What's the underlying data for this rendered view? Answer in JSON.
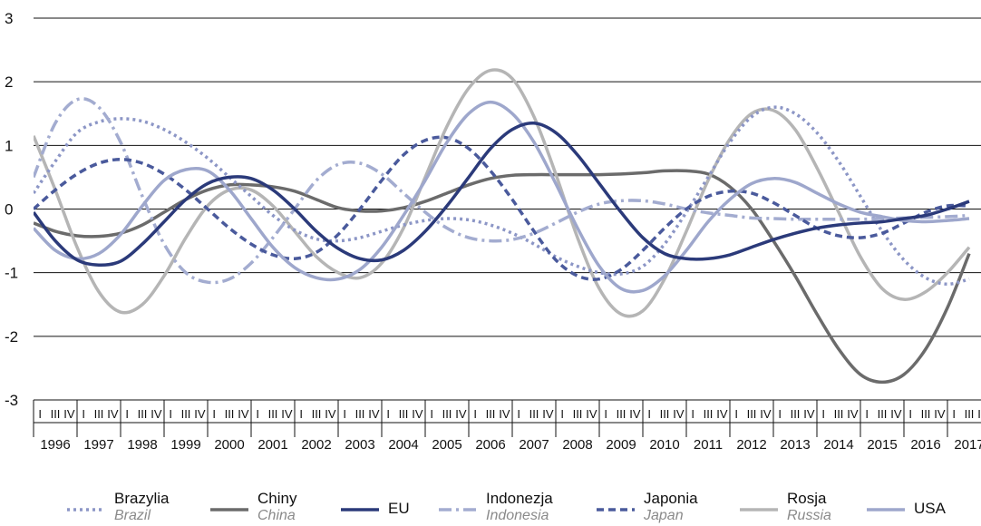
{
  "chart_data": {
    "type": "line",
    "title": "",
    "xlabel": "",
    "ylabel": "",
    "ylim": [
      -3,
      3
    ],
    "yticks": [
      3,
      2,
      1,
      0,
      -1,
      -2,
      -3
    ],
    "years": [
      "1996",
      "1997",
      "1998",
      "1999",
      "2000",
      "2001",
      "2002",
      "2003",
      "2004",
      "2005",
      "2006",
      "2007",
      "2008",
      "2009",
      "2010",
      "2011",
      "2012",
      "2013",
      "2014",
      "2015",
      "2016",
      "2017"
    ],
    "quarter_marks": [
      "I",
      "II",
      "III",
      "IV"
    ],
    "grid": true,
    "legend_position": "bottom",
    "series": [
      {
        "name": "Brazylia",
        "subtitle": "Brazil",
        "color": "#8c96c6",
        "style": "dotted",
        "x": [
          1996.0,
          1996.5,
          1997.0,
          1997.5,
          1998.0,
          1998.5,
          1999.0,
          1999.5,
          2000.0,
          2000.5,
          2001.0,
          2001.5,
          2002.0,
          2002.5,
          2003.0,
          2003.5,
          2004.0,
          2004.5,
          2005.0,
          2005.5,
          2006.0,
          2006.5,
          2007.0,
          2007.5,
          2008.0,
          2008.5,
          2009.0,
          2009.5,
          2010.0,
          2010.5,
          2011.0,
          2011.5,
          2012.0,
          2012.5,
          2013.0,
          2013.5,
          2014.0,
          2014.5,
          2015.0,
          2015.5,
          2016.0,
          2016.5,
          2017.0,
          2017.5
        ],
        "values": [
          0.25,
          0.75,
          1.2,
          1.37,
          1.42,
          1.38,
          1.25,
          1.05,
          0.8,
          0.5,
          0.2,
          -0.1,
          -0.33,
          -0.47,
          -0.5,
          -0.45,
          -0.35,
          -0.25,
          -0.18,
          -0.15,
          -0.17,
          -0.25,
          -0.38,
          -0.55,
          -0.75,
          -0.9,
          -1.0,
          -1.02,
          -0.9,
          -0.55,
          -0.05,
          0.5,
          1.05,
          1.45,
          1.6,
          1.5,
          1.2,
          0.75,
          0.2,
          -0.35,
          -0.8,
          -1.08,
          -1.18,
          -1.1
        ]
      },
      {
        "name": "Chiny",
        "subtitle": "China",
        "color": "#6b6b6b",
        "style": "solid",
        "x": [
          1996.0,
          1996.5,
          1997.0,
          1997.5,
          1998.0,
          1998.5,
          1999.0,
          1999.5,
          2000.0,
          2000.5,
          2001.0,
          2001.5,
          2002.0,
          2002.5,
          2003.0,
          2003.5,
          2004.0,
          2004.5,
          2005.0,
          2005.5,
          2006.0,
          2006.5,
          2007.0,
          2007.5,
          2008.0,
          2008.5,
          2009.0,
          2009.5,
          2010.0,
          2010.5,
          2011.0,
          2011.5,
          2012.0,
          2012.5,
          2013.0,
          2013.5,
          2014.0,
          2014.5,
          2015.0,
          2015.5,
          2016.0,
          2016.5,
          2017.0,
          2017.5
        ],
        "values": [
          -0.22,
          -0.35,
          -0.42,
          -0.43,
          -0.38,
          -0.25,
          -0.05,
          0.15,
          0.3,
          0.38,
          0.38,
          0.35,
          0.28,
          0.15,
          0.02,
          -0.03,
          -0.03,
          0.02,
          0.12,
          0.25,
          0.38,
          0.48,
          0.53,
          0.54,
          0.54,
          0.54,
          0.54,
          0.55,
          0.57,
          0.6,
          0.6,
          0.55,
          0.35,
          0.0,
          -0.5,
          -1.05,
          -1.65,
          -2.2,
          -2.6,
          -2.72,
          -2.6,
          -2.2,
          -1.55,
          -0.7
        ]
      },
      {
        "name": "EU",
        "subtitle": "",
        "color": "#2b3a7a",
        "style": "solid",
        "x": [
          1996.0,
          1996.5,
          1997.0,
          1997.5,
          1998.0,
          1998.5,
          1999.0,
          1999.5,
          2000.0,
          2000.5,
          2001.0,
          2001.5,
          2002.0,
          2002.5,
          2003.0,
          2003.5,
          2004.0,
          2004.5,
          2005.0,
          2005.5,
          2006.0,
          2006.5,
          2007.0,
          2007.5,
          2008.0,
          2008.5,
          2009.0,
          2009.5,
          2010.0,
          2010.5,
          2011.0,
          2011.5,
          2012.0,
          2012.5,
          2013.0,
          2013.5,
          2014.0,
          2014.5,
          2015.0,
          2015.5,
          2016.0,
          2016.5,
          2017.0,
          2017.5
        ],
        "values": [
          -0.05,
          -0.5,
          -0.8,
          -0.88,
          -0.82,
          -0.55,
          -0.2,
          0.15,
          0.4,
          0.5,
          0.48,
          0.3,
          0.0,
          -0.35,
          -0.62,
          -0.78,
          -0.8,
          -0.65,
          -0.35,
          0.05,
          0.5,
          0.95,
          1.25,
          1.35,
          1.2,
          0.85,
          0.4,
          -0.05,
          -0.45,
          -0.7,
          -0.78,
          -0.78,
          -0.72,
          -0.6,
          -0.48,
          -0.38,
          -0.3,
          -0.25,
          -0.22,
          -0.2,
          -0.15,
          -0.1,
          0.0,
          0.12
        ]
      },
      {
        "name": "Indonezja",
        "subtitle": "Indonesia",
        "color": "#a3acd0",
        "style": "dashdot",
        "x": [
          1996.0,
          1996.5,
          1997.0,
          1997.5,
          1998.0,
          1998.5,
          1999.0,
          1999.5,
          2000.0,
          2000.5,
          2001.0,
          2001.5,
          2002.0,
          2002.5,
          2003.0,
          2003.5,
          2004.0,
          2004.5,
          2005.0,
          2005.5,
          2006.0,
          2006.5,
          2007.0,
          2007.5,
          2008.0,
          2008.5,
          2009.0,
          2009.5,
          2010.0,
          2010.5,
          2011.0,
          2011.5,
          2012.0,
          2012.5,
          2013.0,
          2013.5,
          2014.0,
          2014.5,
          2015.0,
          2015.5,
          2016.0,
          2016.5,
          2017.0,
          2017.5
        ],
        "values": [
          0.5,
          1.35,
          1.72,
          1.6,
          1.05,
          0.2,
          -0.55,
          -1.0,
          -1.15,
          -1.1,
          -0.85,
          -0.45,
          0.0,
          0.45,
          0.7,
          0.72,
          0.55,
          0.25,
          -0.05,
          -0.3,
          -0.45,
          -0.5,
          -0.48,
          -0.38,
          -0.22,
          -0.05,
          0.08,
          0.13,
          0.13,
          0.08,
          0.0,
          -0.06,
          -0.1,
          -0.14,
          -0.15,
          -0.16,
          -0.16,
          -0.16,
          -0.16,
          -0.15,
          -0.14,
          -0.13,
          -0.12,
          -0.1
        ]
      },
      {
        "name": "Japonia",
        "subtitle": "Japan",
        "color": "#4a5a9c",
        "style": "dashed",
        "x": [
          1996.0,
          1996.5,
          1997.0,
          1997.5,
          1998.0,
          1998.5,
          1999.0,
          1999.5,
          2000.0,
          2000.5,
          2001.0,
          2001.5,
          2002.0,
          2002.5,
          2003.0,
          2003.5,
          2004.0,
          2004.5,
          2005.0,
          2005.5,
          2006.0,
          2006.5,
          2007.0,
          2007.5,
          2008.0,
          2008.5,
          2009.0,
          2009.5,
          2010.0,
          2010.5,
          2011.0,
          2011.5,
          2012.0,
          2012.5,
          2013.0,
          2013.5,
          2014.0,
          2014.5,
          2015.0,
          2015.5,
          2016.0,
          2016.5,
          2017.0,
          2017.5
        ],
        "values": [
          0.0,
          0.3,
          0.55,
          0.72,
          0.78,
          0.72,
          0.55,
          0.3,
          0.0,
          -0.3,
          -0.55,
          -0.72,
          -0.78,
          -0.68,
          -0.4,
          0.0,
          0.45,
          0.85,
          1.08,
          1.12,
          0.95,
          0.6,
          0.15,
          -0.35,
          -0.8,
          -1.05,
          -1.1,
          -0.95,
          -0.65,
          -0.3,
          0.0,
          0.2,
          0.28,
          0.25,
          0.1,
          -0.1,
          -0.3,
          -0.42,
          -0.45,
          -0.38,
          -0.22,
          -0.05,
          0.05,
          0.05
        ]
      },
      {
        "name": "Rosja",
        "subtitle": "Russia",
        "color": "#b5b5b5",
        "style": "solid",
        "x": [
          1996.0,
          1996.5,
          1997.0,
          1997.5,
          1998.0,
          1998.5,
          1999.0,
          1999.5,
          2000.0,
          2000.5,
          2001.0,
          2001.5,
          2002.0,
          2002.5,
          2003.0,
          2003.5,
          2004.0,
          2004.5,
          2005.0,
          2005.5,
          2006.0,
          2006.5,
          2007.0,
          2007.5,
          2008.0,
          2008.5,
          2009.0,
          2009.5,
          2010.0,
          2010.5,
          2011.0,
          2011.5,
          2012.0,
          2012.5,
          2013.0,
          2013.5,
          2014.0,
          2014.5,
          2015.0,
          2015.5,
          2016.0,
          2016.5,
          2017.0,
          2017.5
        ],
        "values": [
          1.15,
          0.3,
          -0.6,
          -1.3,
          -1.62,
          -1.5,
          -1.05,
          -0.45,
          0.05,
          0.3,
          0.3,
          0.05,
          -0.35,
          -0.75,
          -1.0,
          -1.08,
          -0.85,
          -0.3,
          0.5,
          1.3,
          1.9,
          2.18,
          2.05,
          1.45,
          0.55,
          -0.45,
          -1.25,
          -1.65,
          -1.6,
          -1.1,
          -0.35,
          0.45,
          1.1,
          1.5,
          1.55,
          1.25,
          0.65,
          -0.05,
          -0.75,
          -1.25,
          -1.42,
          -1.3,
          -1.0,
          -0.6
        ]
      },
      {
        "name": "USA",
        "subtitle": "",
        "color": "#9ea7cc",
        "style": "solid",
        "x": [
          1996.0,
          1996.5,
          1997.0,
          1997.5,
          1998.0,
          1998.5,
          1999.0,
          1999.5,
          2000.0,
          2000.5,
          2001.0,
          2001.5,
          2002.0,
          2002.5,
          2003.0,
          2003.5,
          2004.0,
          2004.5,
          2005.0,
          2005.5,
          2006.0,
          2006.5,
          2007.0,
          2007.5,
          2008.0,
          2008.5,
          2009.0,
          2009.5,
          2010.0,
          2010.5,
          2011.0,
          2011.5,
          2012.0,
          2012.5,
          2013.0,
          2013.5,
          2014.0,
          2014.5,
          2015.0,
          2015.5,
          2016.0,
          2016.5,
          2017.0,
          2017.5
        ],
        "values": [
          -0.3,
          -0.65,
          -0.78,
          -0.7,
          -0.4,
          0.05,
          0.45,
          0.62,
          0.6,
          0.3,
          -0.15,
          -0.6,
          -0.92,
          -1.08,
          -1.1,
          -0.95,
          -0.6,
          -0.1,
          0.45,
          1.05,
          1.5,
          1.68,
          1.5,
          1.05,
          0.4,
          -0.3,
          -0.9,
          -1.25,
          -1.28,
          -1.05,
          -0.65,
          -0.2,
          0.15,
          0.4,
          0.48,
          0.42,
          0.25,
          0.08,
          -0.05,
          -0.12,
          -0.18,
          -0.2,
          -0.18,
          -0.15
        ]
      }
    ]
  }
}
